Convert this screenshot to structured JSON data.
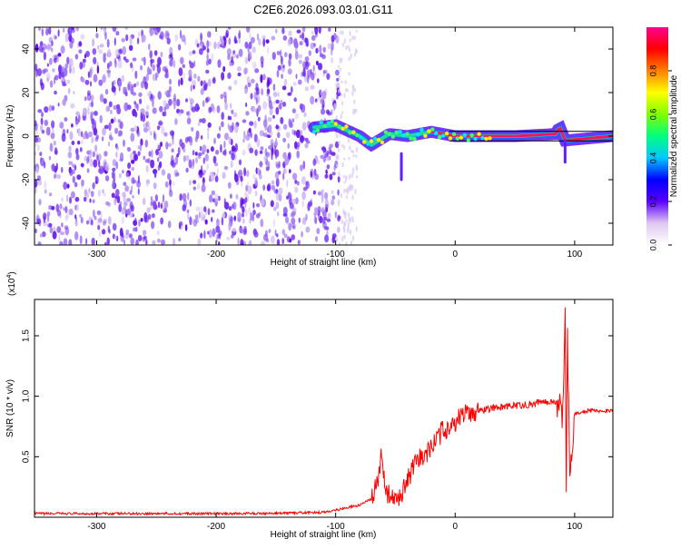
{
  "title": "C2E6.2026.093.03.01.G11",
  "chart_data": [
    {
      "type": "heatmap",
      "name": "spectrogram",
      "xlabel": "Height of straight line (km)",
      "ylabel": "Frequency (Hz)",
      "xlim": [
        -352,
        132
      ],
      "ylim": [
        -50,
        50
      ],
      "xticks": [
        -300,
        -200,
        -100,
        0,
        100
      ],
      "yticks": [
        40,
        20,
        0,
        -20,
        -40
      ],
      "noise_region_x": [
        -352,
        -100
      ],
      "signal_track": [
        {
          "x": -118,
          "y": 4
        },
        {
          "x": -100,
          "y": 5
        },
        {
          "x": -80,
          "y": 0
        },
        {
          "x": -70,
          "y": -4
        },
        {
          "x": -55,
          "y": 1
        },
        {
          "x": -40,
          "y": 0
        },
        {
          "x": -20,
          "y": 2
        },
        {
          "x": 0,
          "y": 0
        },
        {
          "x": 50,
          "y": 0
        },
        {
          "x": 85,
          "y": 1
        },
        {
          "x": 87,
          "y": 5
        },
        {
          "x": 92,
          "y": -2
        },
        {
          "x": 132,
          "y": 0
        }
      ],
      "colorbar": {
        "label": "Normalized spectral amplitude",
        "range": [
          0,
          1
        ],
        "ticks": [
          "0.8",
          "0.6",
          "0.4",
          "0.2",
          "0.0"
        ],
        "tick_values": [
          0.8,
          0.6,
          0.4,
          0.2,
          0.0
        ],
        "colors": [
          "#ffffff",
          "#e0c8f0",
          "#5a00ff",
          "#0000ff",
          "#00c8ff",
          "#00ff80",
          "#80ff00",
          "#ffff00",
          "#ff8000",
          "#ff0000",
          "#ff0090"
        ]
      }
    },
    {
      "type": "line",
      "name": "snr",
      "xlabel": "Height of straight line (km)",
      "ylabel": "SNR (10 * v/v)",
      "y_multiplier": "(x10",
      "y_multiplier_exp": "4",
      "y_multiplier_close": ")",
      "xlim": [
        -352,
        132
      ],
      "ylim": [
        0,
        18000
      ],
      "xticks": [
        -300,
        -200,
        -100,
        0,
        100
      ],
      "yticks": [
        {
          "label": "0.5",
          "value": 5000
        },
        {
          "label": "1.0",
          "value": 10000
        },
        {
          "label": "1.5",
          "value": 15000
        }
      ],
      "color": "#ff0000",
      "series": [
        {
          "name": "SNR",
          "points": [
            [
              -352,
              300
            ],
            [
              -300,
              300
            ],
            [
              -250,
              300
            ],
            [
              -200,
              300
            ],
            [
              -150,
              320
            ],
            [
              -110,
              400
            ],
            [
              -95,
              700
            ],
            [
              -80,
              1000
            ],
            [
              -70,
              1500
            ],
            [
              -64,
              3000
            ],
            [
              -62,
              5000
            ],
            [
              -60,
              4000
            ],
            [
              -57,
              2000
            ],
            [
              -50,
              1200
            ],
            [
              -45,
              2000
            ],
            [
              -40,
              3000
            ],
            [
              -35,
              4000
            ],
            [
              -30,
              4800
            ],
            [
              -25,
              5200
            ],
            [
              -20,
              5800
            ],
            [
              -15,
              6500
            ],
            [
              -10,
              7200
            ],
            [
              -5,
              7500
            ],
            [
              0,
              7900
            ],
            [
              5,
              8300
            ],
            [
              10,
              8600
            ],
            [
              20,
              8800
            ],
            [
              30,
              9000
            ],
            [
              40,
              9100
            ],
            [
              50,
              9200
            ],
            [
              60,
              9300
            ],
            [
              70,
              9500
            ],
            [
              80,
              9600
            ],
            [
              87,
              9400
            ],
            [
              90,
              8000
            ],
            [
              92,
              17000
            ],
            [
              93,
              2000
            ],
            [
              94,
              15000
            ],
            [
              96,
              3000
            ],
            [
              98,
              6000
            ],
            [
              100,
              8500
            ],
            [
              105,
              8700
            ],
            [
              110,
              8800
            ],
            [
              120,
              8800
            ],
            [
              132,
              8800
            ]
          ]
        }
      ]
    }
  ]
}
